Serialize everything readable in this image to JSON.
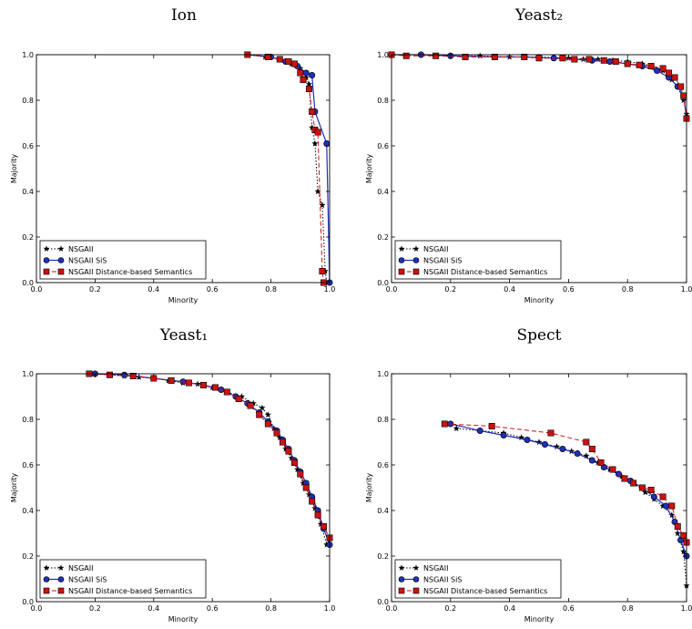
{
  "legend_labels": [
    "NSGAII",
    "NSGAII SiS",
    "NSGAII Distance-based Semantics"
  ],
  "series_colors": {
    "NSGAII": "#000000",
    "NSGAII SiS": "#1f2fb8",
    "NSGAII Distance-based Semantics": "#cc1111"
  },
  "chart_data": [
    {
      "type": "line",
      "title": "Ion",
      "xlabel": "Minority",
      "ylabel": "Majority",
      "xlim": [
        0,
        1
      ],
      "ylim": [
        0,
        1
      ],
      "xticks": [
        "0.0",
        "0.2",
        "0.4",
        "0.6",
        "0.8",
        "1.0"
      ],
      "yticks": [
        "0.0",
        "0.2",
        "0.4",
        "0.6",
        "0.8",
        "1.0"
      ],
      "legend_position": "lower-left",
      "grid": false,
      "series": [
        {
          "name": "NSGAII",
          "x": [
            0.72,
            0.78,
            0.83,
            0.87,
            0.9,
            0.92,
            0.93,
            0.94,
            0.95,
            0.96,
            0.975,
            0.985,
            0.99
          ],
          "y": [
            1.0,
            0.99,
            0.98,
            0.96,
            0.94,
            0.9,
            0.87,
            0.68,
            0.61,
            0.4,
            0.34,
            0.05,
            0.0
          ]
        },
        {
          "name": "NSGAII SiS",
          "x": [
            0.72,
            0.8,
            0.85,
            0.89,
            0.92,
            0.94,
            0.95,
            0.99,
            1.0
          ],
          "y": [
            1.0,
            0.99,
            0.97,
            0.95,
            0.92,
            0.91,
            0.75,
            0.61,
            0.0
          ]
        },
        {
          "name": "NSGAII Distance-based Semantics",
          "x": [
            0.72,
            0.79,
            0.83,
            0.86,
            0.88,
            0.9,
            0.91,
            0.93,
            0.94,
            0.95,
            0.96,
            0.975,
            0.98
          ],
          "y": [
            1.0,
            0.99,
            0.98,
            0.97,
            0.96,
            0.92,
            0.89,
            0.85,
            0.75,
            0.67,
            0.66,
            0.05,
            0.0
          ]
        }
      ]
    },
    {
      "type": "line",
      "title": "Yeast₂",
      "xlabel": "Minority",
      "ylabel": "Majority",
      "xlim": [
        0,
        1
      ],
      "ylim": [
        0,
        1
      ],
      "xticks": [
        "0.0",
        "0.2",
        "0.4",
        "0.6",
        "0.8",
        "1.0"
      ],
      "yticks": [
        "0.0",
        "0.2",
        "0.4",
        "0.6",
        "0.8",
        "1.0"
      ],
      "legend_position": "lower-left",
      "grid": false,
      "series": [
        {
          "name": "NSGAII",
          "x": [
            0.0,
            0.1,
            0.2,
            0.3,
            0.4,
            0.5,
            0.6,
            0.65,
            0.7,
            0.75,
            0.8,
            0.85,
            0.88,
            0.92,
            0.95,
            0.97,
            0.99,
            1.0
          ],
          "y": [
            1.0,
            1.0,
            0.995,
            0.995,
            0.99,
            0.99,
            0.985,
            0.98,
            0.98,
            0.975,
            0.97,
            0.96,
            0.95,
            0.93,
            0.89,
            0.86,
            0.8,
            0.74
          ]
        },
        {
          "name": "NSGAII SiS",
          "x": [
            0.0,
            0.1,
            0.2,
            0.35,
            0.45,
            0.55,
            0.62,
            0.68,
            0.74,
            0.8,
            0.85,
            0.9,
            0.94,
            0.97,
            0.99,
            1.0
          ],
          "y": [
            1.0,
            1.0,
            0.995,
            0.99,
            0.99,
            0.985,
            0.98,
            0.975,
            0.97,
            0.96,
            0.95,
            0.93,
            0.9,
            0.86,
            0.82,
            0.72
          ]
        },
        {
          "name": "NSGAII Distance-based Semantics",
          "x": [
            0.0,
            0.05,
            0.15,
            0.25,
            0.35,
            0.45,
            0.5,
            0.58,
            0.62,
            0.67,
            0.72,
            0.76,
            0.8,
            0.84,
            0.88,
            0.92,
            0.94,
            0.96,
            0.98,
            0.99,
            1.0
          ],
          "y": [
            1.0,
            0.995,
            0.995,
            0.99,
            0.99,
            0.99,
            0.985,
            0.985,
            0.98,
            0.98,
            0.975,
            0.97,
            0.96,
            0.955,
            0.95,
            0.94,
            0.92,
            0.9,
            0.86,
            0.82,
            0.72
          ]
        }
      ]
    },
    {
      "type": "line",
      "title": "Yeast₁",
      "xlabel": "Minority",
      "ylabel": "Majority",
      "xlim": [
        0,
        1
      ],
      "ylim": [
        0,
        1
      ],
      "xticks": [
        "0.0",
        "0.2",
        "0.4",
        "0.6",
        "0.8",
        "1.0"
      ],
      "yticks": [
        "0.0",
        "0.2",
        "0.4",
        "0.6",
        "0.8",
        "1.0"
      ],
      "legend_position": "lower-left",
      "grid": false,
      "series": [
        {
          "name": "NSGAII",
          "x": [
            0.2,
            0.25,
            0.3,
            0.35,
            0.4,
            0.45,
            0.5,
            0.55,
            0.6,
            0.65,
            0.7,
            0.74,
            0.77,
            0.79,
            0.81,
            0.83,
            0.85,
            0.87,
            0.89,
            0.91,
            0.93,
            0.95,
            0.97,
            0.99
          ],
          "y": [
            1.0,
            0.995,
            0.99,
            0.985,
            0.98,
            0.97,
            0.96,
            0.955,
            0.94,
            0.92,
            0.9,
            0.87,
            0.85,
            0.82,
            0.76,
            0.72,
            0.67,
            0.63,
            0.58,
            0.52,
            0.47,
            0.41,
            0.34,
            0.25
          ]
        },
        {
          "name": "NSGAII SiS",
          "x": [
            0.2,
            0.3,
            0.4,
            0.5,
            0.57,
            0.63,
            0.68,
            0.72,
            0.76,
            0.79,
            0.82,
            0.84,
            0.86,
            0.88,
            0.9,
            0.92,
            0.94,
            0.96,
            0.98,
            1.0
          ],
          "y": [
            1.0,
            0.995,
            0.98,
            0.965,
            0.95,
            0.93,
            0.9,
            0.87,
            0.83,
            0.79,
            0.75,
            0.71,
            0.67,
            0.62,
            0.57,
            0.52,
            0.46,
            0.4,
            0.32,
            0.25
          ]
        },
        {
          "name": "NSGAII Distance-based Semantics",
          "x": [
            0.18,
            0.25,
            0.33,
            0.4,
            0.46,
            0.52,
            0.57,
            0.61,
            0.65,
            0.69,
            0.73,
            0.76,
            0.79,
            0.82,
            0.84,
            0.86,
            0.88,
            0.9,
            0.92,
            0.94,
            0.96,
            0.98,
            1.0
          ],
          "y": [
            1.0,
            0.995,
            0.99,
            0.98,
            0.97,
            0.96,
            0.95,
            0.94,
            0.92,
            0.89,
            0.86,
            0.82,
            0.78,
            0.74,
            0.7,
            0.66,
            0.61,
            0.56,
            0.5,
            0.44,
            0.38,
            0.33,
            0.28
          ]
        }
      ]
    },
    {
      "type": "line",
      "title": "Spect",
      "xlabel": "Minority",
      "ylabel": "Majority",
      "xlim": [
        0,
        1
      ],
      "ylim": [
        0,
        1
      ],
      "xticks": [
        "0.0",
        "0.2",
        "0.4",
        "0.6",
        "0.8",
        "1.0"
      ],
      "yticks": [
        "0.0",
        "0.2",
        "0.4",
        "0.6",
        "0.8",
        "1.0"
      ],
      "legend_position": "lower-left",
      "grid": false,
      "series": [
        {
          "name": "NSGAII",
          "x": [
            0.22,
            0.3,
            0.38,
            0.44,
            0.5,
            0.56,
            0.61,
            0.66,
            0.7,
            0.74,
            0.78,
            0.82,
            0.86,
            0.89,
            0.92,
            0.95,
            0.97,
            0.99,
            1.0
          ],
          "y": [
            0.76,
            0.75,
            0.74,
            0.72,
            0.7,
            0.68,
            0.66,
            0.64,
            0.61,
            0.58,
            0.55,
            0.52,
            0.48,
            0.45,
            0.42,
            0.38,
            0.3,
            0.22,
            0.07
          ]
        },
        {
          "name": "NSGAII SiS",
          "x": [
            0.2,
            0.3,
            0.38,
            0.46,
            0.52,
            0.58,
            0.63,
            0.68,
            0.72,
            0.77,
            0.81,
            0.85,
            0.89,
            0.93,
            0.96,
            0.98,
            1.0
          ],
          "y": [
            0.78,
            0.75,
            0.73,
            0.71,
            0.69,
            0.67,
            0.65,
            0.62,
            0.59,
            0.56,
            0.53,
            0.5,
            0.46,
            0.42,
            0.35,
            0.27,
            0.2
          ]
        },
        {
          "name": "NSGAII Distance-based Semantics",
          "x": [
            0.18,
            0.34,
            0.54,
            0.66,
            0.68,
            0.71,
            0.75,
            0.79,
            0.82,
            0.85,
            0.88,
            0.92,
            0.95,
            0.97,
            0.99,
            1.0
          ],
          "y": [
            0.78,
            0.77,
            0.74,
            0.7,
            0.67,
            0.61,
            0.58,
            0.54,
            0.52,
            0.5,
            0.49,
            0.46,
            0.42,
            0.33,
            0.29,
            0.26
          ]
        }
      ]
    }
  ]
}
